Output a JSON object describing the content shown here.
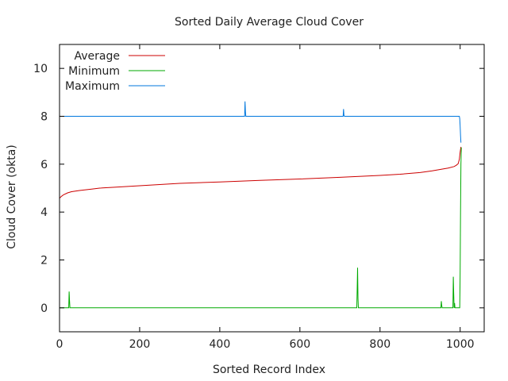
{
  "chart_data": {
    "type": "line",
    "title": "Sorted Daily Average Cloud Cover",
    "xlabel": "Sorted Record Index",
    "ylabel": "Cloud Cover (okta)",
    "xlim": [
      0,
      1060
    ],
    "ylim": [
      -1,
      11
    ],
    "xticks": [
      0,
      200,
      400,
      600,
      800,
      1000
    ],
    "yticks": [
      0,
      2,
      4,
      6,
      8,
      10
    ],
    "grid": false,
    "legend_position": "top-left",
    "series": [
      {
        "name": "Average",
        "color": "#cc0000",
        "x": [
          0,
          5,
          10,
          20,
          30,
          50,
          80,
          100,
          150,
          200,
          300,
          400,
          500,
          600,
          700,
          800,
          850,
          900,
          930,
          950,
          970,
          985,
          990,
          995,
          998,
          1000,
          1002
        ],
        "y": [
          4.58,
          4.66,
          4.72,
          4.8,
          4.85,
          4.9,
          4.96,
          5.0,
          5.05,
          5.1,
          5.2,
          5.26,
          5.32,
          5.38,
          5.45,
          5.53,
          5.58,
          5.65,
          5.72,
          5.78,
          5.84,
          5.9,
          5.95,
          6.02,
          6.2,
          6.5,
          6.72
        ]
      },
      {
        "name": "Minimum",
        "color": "#00aa00",
        "x": [
          0,
          23,
          24,
          25,
          26,
          742,
          743,
          744,
          745,
          746,
          952,
          953,
          954,
          955,
          982,
          983,
          984,
          985,
          986,
          987,
          999,
          1000,
          1001,
          1002,
          1003
        ],
        "y": [
          0,
          0,
          0.68,
          0.3,
          0,
          0,
          0.8,
          1.68,
          0.4,
          0,
          0,
          0.28,
          0.1,
          0,
          0,
          1.3,
          0.6,
          0,
          0.2,
          0,
          0,
          1.4,
          4.0,
          6.0,
          6.7
        ]
      },
      {
        "name": "Maximum",
        "color": "#0077dd",
        "x": [
          0,
          462,
          463,
          464,
          465,
          708,
          709,
          710,
          711,
          998,
          999,
          1000,
          1001,
          1002
        ],
        "y": [
          8,
          8,
          8.62,
          8.2,
          8,
          8,
          8.3,
          8.05,
          8,
          8,
          7.9,
          7.6,
          7.2,
          6.9
        ]
      }
    ]
  }
}
